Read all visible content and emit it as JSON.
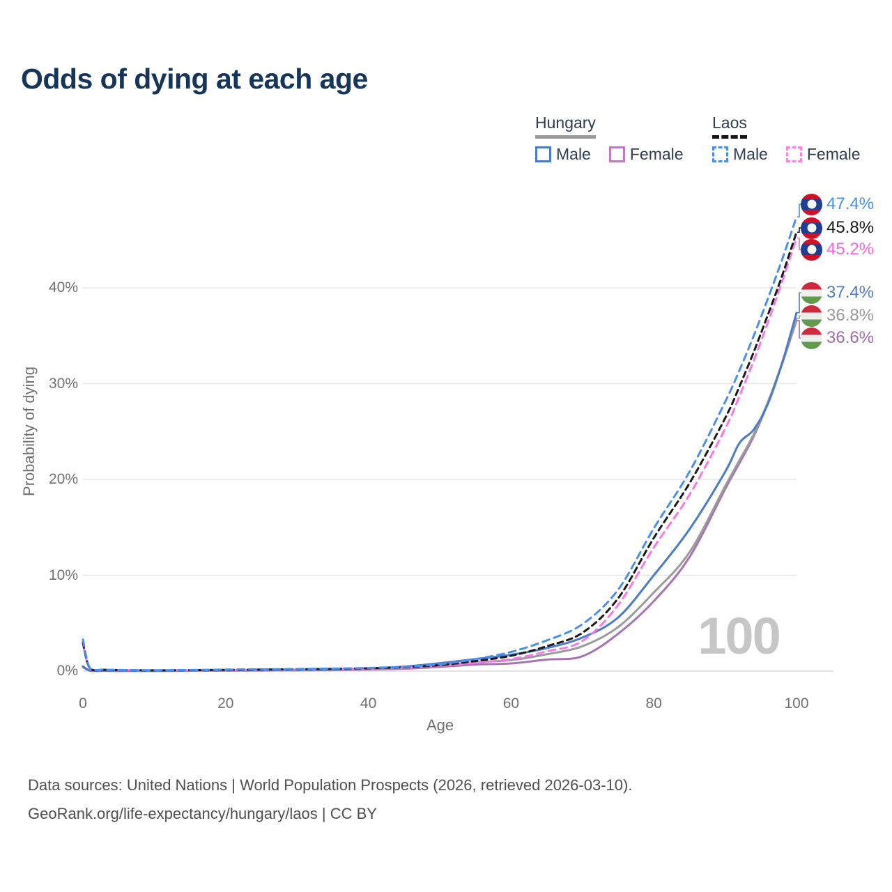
{
  "title": "Odds of dying at each age",
  "legend": {
    "groups": [
      {
        "name": "Hungary",
        "line_style": "solid",
        "items": [
          {
            "label": "Male"
          },
          {
            "label": "Female"
          }
        ]
      },
      {
        "name": "Laos",
        "line_style": "dashed",
        "items": [
          {
            "label": "Male"
          },
          {
            "label": "Female"
          }
        ]
      }
    ]
  },
  "watermark_age": "100",
  "chart_data": {
    "type": "line",
    "title": "Odds of dying at each age",
    "xlabel": "Age",
    "ylabel": "Probability of dying",
    "xlim": [
      0,
      100
    ],
    "ylim": [
      0,
      40
    ],
    "grid": "horizontal",
    "xticks": [
      {
        "value": 0,
        "label": "0"
      },
      {
        "value": 20,
        "label": "20"
      },
      {
        "value": 40,
        "label": "40"
      },
      {
        "value": 60,
        "label": "60"
      },
      {
        "value": 80,
        "label": "80"
      },
      {
        "value": 100,
        "label": "100"
      }
    ],
    "yticks": [
      {
        "value": 0,
        "label": "0%"
      },
      {
        "value": 10,
        "label": "10%"
      },
      {
        "value": 20,
        "label": "20%"
      },
      {
        "value": 30,
        "label": "30%"
      },
      {
        "value": 40,
        "label": "40%"
      }
    ],
    "x": [
      0,
      1,
      3,
      5,
      10,
      15,
      20,
      25,
      30,
      35,
      40,
      45,
      50,
      55,
      60,
      65,
      70,
      75,
      80,
      85,
      90,
      92,
      94,
      96,
      98,
      100
    ],
    "series": [
      {
        "name": "Hungary Female",
        "country": "Hungary",
        "sex": "Female",
        "style": "solid",
        "color": "#a873b4",
        "values": [
          0.4,
          0.05,
          0.03,
          0.02,
          0.02,
          0.03,
          0.05,
          0.06,
          0.08,
          0.1,
          0.16,
          0.25,
          0.44,
          0.68,
          0.8,
          1.2,
          1.55,
          3.9,
          7.3,
          11.9,
          19.0,
          21.7,
          24.5,
          28.0,
          32.1,
          36.6
        ]
      },
      {
        "name": "Hungary Both sexes",
        "country": "Hungary",
        "sex": "Both",
        "style": "solid",
        "color": "#9b9b9b",
        "values": [
          0.45,
          0.05,
          0.03,
          0.03,
          0.02,
          0.04,
          0.06,
          0.08,
          0.11,
          0.14,
          0.22,
          0.35,
          0.62,
          0.93,
          1.15,
          1.75,
          2.6,
          4.6,
          8.2,
          12.4,
          19.3,
          22.0,
          24.7,
          28.1,
          32.2,
          36.8
        ]
      },
      {
        "name": "Hungary Male",
        "country": "Hungary",
        "sex": "Male",
        "style": "solid",
        "color": "#4a7cc7",
        "values": [
          0.5,
          0.06,
          0.04,
          0.03,
          0.03,
          0.05,
          0.08,
          0.11,
          0.14,
          0.19,
          0.29,
          0.47,
          0.82,
          1.25,
          1.7,
          2.4,
          3.5,
          5.6,
          10.0,
          14.8,
          20.8,
          23.8,
          25.2,
          27.9,
          32.2,
          37.4
        ]
      },
      {
        "name": "Laos Female",
        "country": "Laos",
        "sex": "Female",
        "style": "dashed",
        "color": "#f878e8",
        "values": [
          2.8,
          0.24,
          0.13,
          0.1,
          0.07,
          0.09,
          0.11,
          0.14,
          0.16,
          0.2,
          0.26,
          0.36,
          0.54,
          0.88,
          1.25,
          2.05,
          3.15,
          6.9,
          12.9,
          18.4,
          25.3,
          28.7,
          32.4,
          36.4,
          40.7,
          45.2
        ]
      },
      {
        "name": "Laos Both sexes",
        "country": "Laos",
        "sex": "Both",
        "style": "dashed",
        "color": "#1a1a1a",
        "values": [
          3.0,
          0.27,
          0.14,
          0.11,
          0.08,
          0.1,
          0.13,
          0.16,
          0.19,
          0.23,
          0.29,
          0.41,
          0.62,
          1.05,
          1.6,
          2.6,
          4.0,
          7.6,
          13.9,
          19.6,
          26.4,
          29.7,
          33.3,
          37.2,
          41.3,
          45.8
        ]
      },
      {
        "name": "Laos Male",
        "country": "Laos",
        "sex": "Male",
        "style": "dashed",
        "color": "#4a8ff0",
        "values": [
          3.3,
          0.3,
          0.16,
          0.12,
          0.09,
          0.12,
          0.16,
          0.19,
          0.22,
          0.26,
          0.33,
          0.46,
          0.72,
          1.25,
          2.0,
          3.2,
          4.9,
          8.5,
          14.9,
          20.8,
          28.1,
          31.4,
          35.0,
          38.9,
          43.0,
          47.4
        ]
      }
    ],
    "end_labels": [
      {
        "series": "Laos Male",
        "label": "47.4%",
        "value": 47.4,
        "color": "#4a90e8",
        "flag": "laos"
      },
      {
        "series": "Laos Both sexes",
        "label": "45.8%",
        "value": 45.8,
        "color": "#1a1a1a",
        "flag": "laos"
      },
      {
        "series": "Laos Female",
        "label": "45.2%",
        "value": 45.2,
        "color": "#f765e0",
        "flag": "laos"
      },
      {
        "series": "Hungary Male",
        "label": "37.4%",
        "value": 37.4,
        "color": "#507dc0",
        "flag": "hungary"
      },
      {
        "series": "Hungary Both sexes",
        "label": "36.8%",
        "value": 36.8,
        "color": "#9b9b9b",
        "flag": "hungary"
      },
      {
        "series": "Hungary Female",
        "label": "36.6%",
        "value": 36.6,
        "color": "#a26bb0",
        "flag": "hungary"
      }
    ],
    "legend_position": "top-right"
  },
  "footer": {
    "line1": "Data sources: United Nations | World Population Prospects (2026, retrieved 2026-03-10).",
    "line2": "GeoRank.org/life-expectancy/hungary/laos | CC BY"
  },
  "colors": {
    "title": "#16355a",
    "axis_text": "#707070",
    "gridline": "#e7e7e7",
    "baseline": "#dcdcdc",
    "watermark": "#c6c6c6",
    "footer_text": "#4f4f4f"
  }
}
